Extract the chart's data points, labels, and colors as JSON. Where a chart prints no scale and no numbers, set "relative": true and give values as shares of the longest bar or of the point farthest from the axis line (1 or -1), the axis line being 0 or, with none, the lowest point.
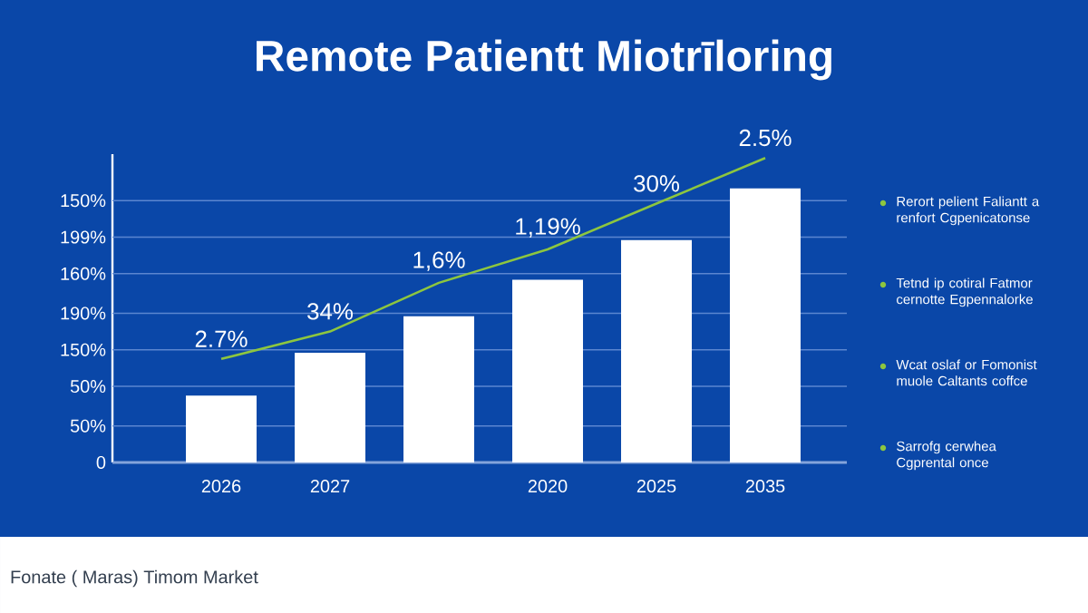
{
  "chart_data": {
    "type": "bar",
    "title": "Remote Patientt Miotrīloring",
    "relative": true,
    "categories": [
      "2026",
      "2027",
      null,
      "2020",
      "2025",
      "2035"
    ],
    "series": [
      {
        "color": "#ffffff",
        "values": [
          0.22,
          0.36,
          0.48,
          0.6,
          0.73,
          0.9
        ]
      },
      {
        "type": "line",
        "color": "#8dc63f",
        "values": [
          0.34,
          0.43,
          0.59,
          0.7,
          0.85,
          1
        ]
      }
    ],
    "ref_lines": [
      {
        "axis": "y",
        "value": 0,
        "color": "#5b86d0"
      },
      {
        "axis": "y",
        "value": 0.12,
        "color": "#5b86d0"
      },
      {
        "axis": "y",
        "value": 0.25,
        "color": "#5b86d0"
      },
      {
        "axis": "y",
        "value": 0.37,
        "color": "#5b86d0"
      },
      {
        "axis": "y",
        "value": 0.49,
        "color": "#5b86d0"
      },
      {
        "axis": "y",
        "value": 0.62,
        "color": "#5b86d0"
      },
      {
        "axis": "y",
        "value": 0.74,
        "color": "#5b86d0"
      },
      {
        "axis": "y",
        "value": 0.86,
        "color": "#5b86d0"
      }
    ],
    "annotations": [
      "0",
      "50%",
      "50%",
      "150%",
      "190%",
      "160%",
      "199%",
      "150%",
      "2.7%",
      "34%",
      "1,6%",
      "1,19%",
      "30%",
      "2.5%",
      "Rerort pelient Faliantt a renfort Cgpenicatonse",
      "Tetnd ip cotiral Fatmor cernotte Egpennalorke",
      "Wcat oslaf or Fomonist muole Caltants coffce",
      "Sarrofg cerwhea Cgprental once",
      "Fonate ( Maras) Timom Market"
    ]
  }
}
